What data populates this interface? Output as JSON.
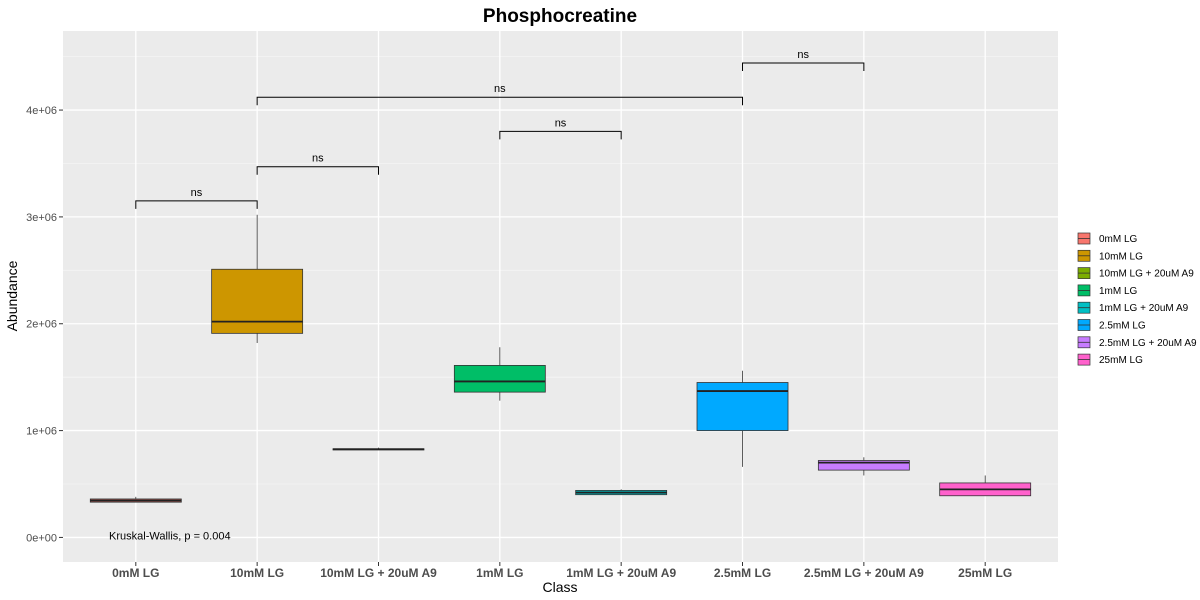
{
  "chart_data": {
    "type": "box",
    "title": "Phosphocreatine",
    "xlabel": "Class",
    "ylabel": "Abundance",
    "ylim": [
      -230000,
      4740000
    ],
    "yticks": [
      0,
      1000000,
      2000000,
      3000000,
      4000000
    ],
    "ytick_labels": [
      "0e+00",
      "1e+06",
      "2e+06",
      "3e+06",
      "4e+06"
    ],
    "grid": true,
    "legend_position": "right",
    "categories": [
      "0mM LG",
      "10mM LG",
      "10mM LG + 20uM A9",
      "1mM LG",
      "1mM LG + 20uM A9",
      "2.5mM LG",
      "2.5mM LG + 20uM A9",
      "25mM LG"
    ],
    "legend": [
      "0mM LG",
      "10mM LG",
      "10mM LG + 20uM A9",
      "1mM LG",
      "1mM LG + 20uM A9",
      "2.5mM LG",
      "2.5mM LG + 20uM A9",
      "25mM LG"
    ],
    "colors": [
      "#F8766D",
      "#CD9600",
      "#7CAE00",
      "#00BE67",
      "#00BFC4",
      "#00A9FF",
      "#C77CFF",
      "#FF61CC"
    ],
    "boxes": [
      {
        "min": 330000,
        "q1": 330000,
        "median": 345000,
        "q3": 360000,
        "max": 380000
      },
      {
        "min": 1820000,
        "q1": 1910000,
        "median": 2020000,
        "q3": 2510000,
        "max": 3020000
      },
      {
        "min": 820000,
        "q1": 820000,
        "median": 825000,
        "q3": 830000,
        "max": 840000
      },
      {
        "min": 1280000,
        "q1": 1360000,
        "median": 1460000,
        "q3": 1610000,
        "max": 1780000
      },
      {
        "min": 400000,
        "q1": 400000,
        "median": 420000,
        "q3": 440000,
        "max": 450000
      },
      {
        "min": 660000,
        "q1": 1000000,
        "median": 1370000,
        "q3": 1450000,
        "max": 1560000
      },
      {
        "min": 580000,
        "q1": 630000,
        "median": 700000,
        "q3": 720000,
        "max": 750000
      },
      {
        "min": 390000,
        "q1": 390000,
        "median": 450000,
        "q3": 510000,
        "max": 580000
      }
    ],
    "comparisons": [
      {
        "from": 0,
        "to": 1,
        "y": 3150000,
        "label": "ns"
      },
      {
        "from": 1,
        "to": 2,
        "y": 3470000,
        "label": "ns"
      },
      {
        "from": 3,
        "to": 4,
        "y": 3800000,
        "label": "ns"
      },
      {
        "from": 1,
        "to": 5,
        "y": 4120000,
        "label": "ns"
      },
      {
        "from": 5,
        "to": 6,
        "y": 4440000,
        "label": "ns"
      }
    ],
    "annotation": {
      "text": "Kruskal-Wallis, p = 0.004",
      "x_category": 0,
      "y": 20000
    }
  }
}
